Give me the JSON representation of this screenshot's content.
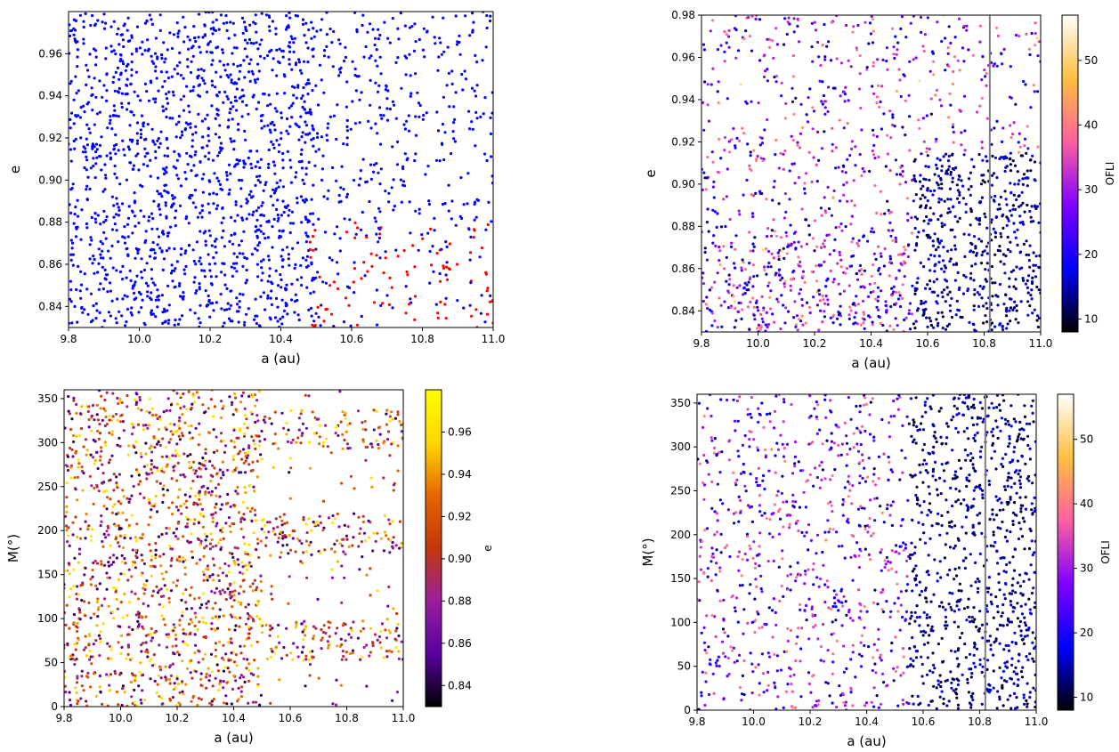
{
  "colors": {
    "bg": "#ffffff",
    "axis": "#000000",
    "blue": "#0000ff",
    "red": "#ff0000",
    "vline": "#808080"
  },
  "colormaps": {
    "gnuplot2": [
      "#000000",
      "#0000ff",
      "#7f00ff",
      "#ff5f9f",
      "#ffbf3f",
      "#ffffff"
    ],
    "gnuplot": [
      "#000000",
      "#5a00a0",
      "#9b1e9e",
      "#c2380a",
      "#e66600",
      "#ffd700",
      "#ffff00"
    ]
  },
  "chart_data": [
    {
      "id": "top-left",
      "type": "scatter",
      "title": "",
      "xlabel": "a (au)",
      "ylabel": "e",
      "xlim": [
        9.8,
        11.0
      ],
      "ylim": [
        0.83,
        0.98
      ],
      "xticks": [
        9.8,
        10.0,
        10.2,
        10.4,
        10.6,
        10.8,
        11.0
      ],
      "xtick_labels": [
        "9.8",
        "10.0",
        "10.2",
        "10.4",
        "10.6",
        "10.8",
        "11.0"
      ],
      "yticks": [
        0.84,
        0.86,
        0.88,
        0.9,
        0.92,
        0.94,
        0.96
      ],
      "ytick_labels": [
        "0.84",
        "0.86",
        "0.88",
        "0.90",
        "0.92",
        "0.94",
        "0.96"
      ],
      "grid": false,
      "series": [
        {
          "color": "#0000ff",
          "density_profile": "dense for a below 10.5, sparser toward 11.0"
        },
        {
          "color": "#ff0000",
          "region": {
            "x": [
              10.48,
              11.0
            ],
            "y": [
              0.83,
              0.88
            ]
          }
        }
      ]
    },
    {
      "id": "top-right",
      "type": "scatter",
      "title": "",
      "xlabel": "a (au)",
      "ylabel": "e",
      "xlim": [
        9.8,
        11.0
      ],
      "ylim": [
        0.83,
        0.98
      ],
      "xticks": [
        9.8,
        10.0,
        10.2,
        10.4,
        10.6,
        10.8,
        11.0
      ],
      "xtick_labels": [
        "9.8",
        "10.0",
        "10.2",
        "10.4",
        "10.6",
        "10.8",
        "11.0"
      ],
      "yticks": [
        0.84,
        0.86,
        0.88,
        0.9,
        0.92,
        0.94,
        0.96,
        0.98
      ],
      "ytick_labels": [
        "0.84",
        "0.86",
        "0.88",
        "0.90",
        "0.92",
        "0.94",
        "0.96",
        "0.98"
      ],
      "grid": false,
      "vline_x": 10.82,
      "colorbar": {
        "label": "OFLI",
        "range": [
          8,
          57
        ],
        "ticks": [
          10,
          20,
          30,
          40,
          50
        ],
        "tick_labels": [
          "10",
          "20",
          "30",
          "40",
          "50"
        ],
        "cmap": "gnuplot2"
      }
    },
    {
      "id": "bottom-left",
      "type": "scatter",
      "title": "",
      "xlabel": "a (au)",
      "ylabel": "M(°)",
      "xlim": [
        9.8,
        11.0
      ],
      "ylim": [
        0,
        360
      ],
      "xticks": [
        9.8,
        10.0,
        10.2,
        10.4,
        10.6,
        10.8,
        11.0
      ],
      "xtick_labels": [
        "9.8",
        "10.0",
        "10.2",
        "10.4",
        "10.6",
        "10.8",
        "11.0"
      ],
      "yticks": [
        0,
        50,
        100,
        150,
        200,
        250,
        300,
        350
      ],
      "ytick_labels": [
        "0",
        "50",
        "100",
        "150",
        "200",
        "250",
        "300",
        "350"
      ],
      "grid": false,
      "resonance_bands_M": [
        75,
        195,
        315
      ],
      "colorbar": {
        "label": "e",
        "range": [
          0.83,
          0.98
        ],
        "ticks": [
          0.84,
          0.86,
          0.88,
          0.9,
          0.92,
          0.94,
          0.96
        ],
        "tick_labels": [
          "0.84",
          "0.86",
          "0.88",
          "0.90",
          "0.92",
          "0.94",
          "0.96"
        ],
        "cmap": "gnuplot"
      }
    },
    {
      "id": "bottom-right",
      "type": "scatter",
      "title": "",
      "xlabel": "a (au)",
      "ylabel": "M(°)",
      "xlim": [
        9.8,
        11.0
      ],
      "ylim": [
        0,
        360
      ],
      "xticks": [
        9.8,
        10.0,
        10.2,
        10.4,
        10.6,
        10.8,
        11.0
      ],
      "xtick_labels": [
        "9.8",
        "10.0",
        "10.2",
        "10.4",
        "10.6",
        "10.8",
        "11.0"
      ],
      "yticks": [
        0,
        50,
        100,
        150,
        200,
        250,
        300,
        350
      ],
      "ytick_labels": [
        "0",
        "50",
        "100",
        "150",
        "200",
        "250",
        "300",
        "350"
      ],
      "grid": false,
      "vline_x": 10.82,
      "colorbar": {
        "label": "OFLI",
        "range": [
          8,
          57
        ],
        "ticks": [
          10,
          20,
          30,
          40,
          50
        ],
        "tick_labels": [
          "10",
          "20",
          "30",
          "40",
          "50"
        ],
        "cmap": "gnuplot2"
      }
    }
  ]
}
